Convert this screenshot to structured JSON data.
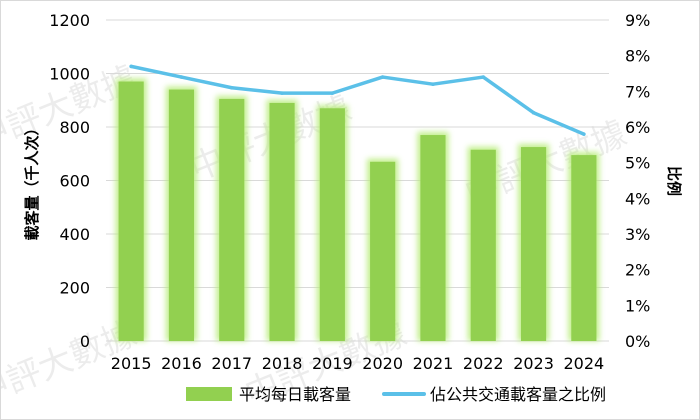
{
  "chart_data": {
    "type": "bar",
    "categories": [
      "2015",
      "2016",
      "2017",
      "2018",
      "2019",
      "2020",
      "2021",
      "2022",
      "2023",
      "2024"
    ],
    "series": [
      {
        "name": "平均每日載客量",
        "type": "bar",
        "axis": "left",
        "color": "#92d050",
        "values": [
          970,
          940,
          905,
          890,
          870,
          670,
          770,
          715,
          725,
          695
        ]
      },
      {
        "name": "佔公共交通載客量之比例",
        "type": "line",
        "axis": "right",
        "color": "#5bc0e8",
        "unit": "%",
        "values": [
          7.7,
          7.4,
          7.1,
          6.95,
          6.95,
          7.4,
          7.2,
          7.4,
          6.4,
          5.8
        ]
      }
    ],
    "ylabel": "載客量（千人次）",
    "ylim": [
      0,
      1200
    ],
    "yticks": [
      0,
      200,
      400,
      600,
      800,
      1000,
      1200
    ],
    "y2label": "比例",
    "y2lim": [
      0,
      9
    ],
    "y2ticks": [
      "0%",
      "1%",
      "2%",
      "3%",
      "4%",
      "5%",
      "6%",
      "7%",
      "8%",
      "9%"
    ],
    "grid": true,
    "legend": "bottom"
  },
  "watermarks": [
    "中評大數據",
    "中評大數據",
    "中評大數據",
    "中評大數據",
    "中評大數據"
  ]
}
